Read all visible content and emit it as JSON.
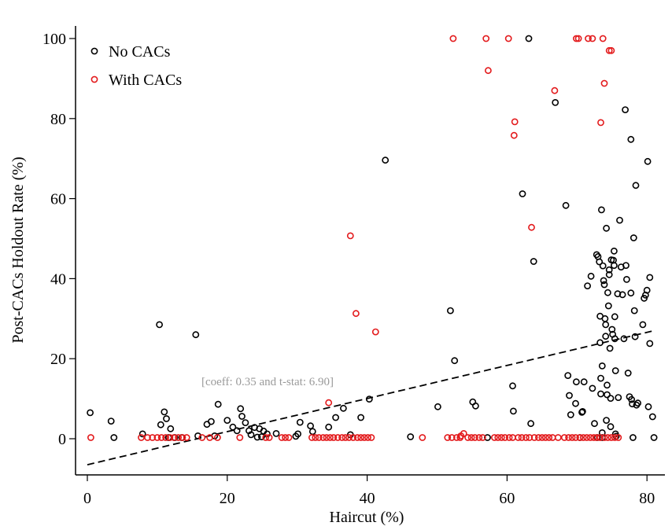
{
  "chart_data": {
    "type": "scatter",
    "xlabel": "Haircut (%)",
    "ylabel": "Post-CACs Holdout Rate (%)",
    "xlim": [
      -2,
      82
    ],
    "ylim": [
      -8,
      103
    ],
    "xticks": [
      0,
      20,
      40,
      60,
      80
    ],
    "yticks": [
      0,
      20,
      40,
      60,
      80,
      100
    ],
    "grid": false,
    "legend_position": "top-left",
    "annotation": "[coeff: 0.35 and t-stat: 6.90]",
    "fit_line": {
      "style": "dashed",
      "color": "#000000",
      "x": [
        0,
        81
      ],
      "y": [
        -6.5,
        27
      ]
    },
    "series": [
      {
        "name": "No CACs",
        "color": "#000000",
        "marker": "hollow-circle",
        "points": [
          [
            0.4,
            6.5
          ],
          [
            3.4,
            4.4
          ],
          [
            3.8,
            0.3
          ],
          [
            7.9,
            1.2
          ],
          [
            10.3,
            28.5
          ],
          [
            10.5,
            3.5
          ],
          [
            11.0,
            6.7
          ],
          [
            11.3,
            5.0
          ],
          [
            11.6,
            0.3
          ],
          [
            11.9,
            2.5
          ],
          [
            12.5,
            0.3
          ],
          [
            13.5,
            0.3
          ],
          [
            15.5,
            26
          ],
          [
            15.8,
            0.7
          ],
          [
            17.1,
            3.6
          ],
          [
            17.7,
            4.3
          ],
          [
            18.2,
            0.7
          ],
          [
            18.7,
            8.6
          ],
          [
            20.0,
            4.6
          ],
          [
            20.8,
            2.9
          ],
          [
            21.4,
            2.0
          ],
          [
            21.9,
            7.5
          ],
          [
            22.1,
            5.6
          ],
          [
            22.6,
            4.0
          ],
          [
            23.1,
            2.0
          ],
          [
            23.4,
            1.0
          ],
          [
            23.9,
            2.8
          ],
          [
            24.3,
            0.4
          ],
          [
            24.6,
            2.5
          ],
          [
            24.9,
            0.5
          ],
          [
            25.2,
            1.9
          ],
          [
            25.7,
            1.2
          ],
          [
            27.0,
            1.3
          ],
          [
            29.8,
            0.6
          ],
          [
            30.1,
            1.2
          ],
          [
            30.4,
            4.1
          ],
          [
            31.9,
            3.2
          ],
          [
            32.2,
            1.8
          ],
          [
            34.5,
            2.9
          ],
          [
            35.5,
            5.3
          ],
          [
            36.6,
            7.6
          ],
          [
            37.6,
            1.0
          ],
          [
            39.1,
            5.3
          ],
          [
            40.3,
            9.9
          ],
          [
            42.6,
            69.6
          ],
          [
            46.2,
            0.5
          ],
          [
            50.1,
            8.0
          ],
          [
            51.9,
            32
          ],
          [
            52.5,
            19.5
          ],
          [
            55.1,
            9.2
          ],
          [
            55.5,
            8.2
          ],
          [
            57.2,
            0.3
          ],
          [
            60.8,
            13.2
          ],
          [
            60.9,
            6.9
          ],
          [
            62.2,
            61.2
          ],
          [
            63.1,
            100
          ],
          [
            63.4,
            3.8
          ],
          [
            63.8,
            44.3
          ],
          [
            66.9,
            84
          ],
          [
            68.4,
            58.3
          ],
          [
            68.7,
            15.8
          ],
          [
            68.9,
            10.8
          ],
          [
            69.1,
            6.0
          ],
          [
            69.8,
            8.8
          ],
          [
            69.9,
            14.2
          ],
          [
            70.4,
            0.3
          ],
          [
            70.7,
            6.6
          ],
          [
            70.8,
            6.8
          ],
          [
            71.0,
            14.2
          ],
          [
            71.5,
            38.2
          ],
          [
            72.0,
            40.6
          ],
          [
            72.2,
            12.6
          ],
          [
            72.5,
            3.8
          ],
          [
            72.8,
            46.0
          ],
          [
            73.0,
            45.5
          ],
          [
            73.2,
            44.2
          ],
          [
            73.3,
            30.6
          ],
          [
            73.3,
            24.0
          ],
          [
            73.4,
            15.1
          ],
          [
            73.4,
            11.2
          ],
          [
            73.5,
            57.2
          ],
          [
            73.6,
            18.2
          ],
          [
            73.6,
            1.5
          ],
          [
            73.7,
            43.2
          ],
          [
            73.8,
            39.5
          ],
          [
            73.9,
            38.5
          ],
          [
            74.0,
            30.0
          ],
          [
            74.1,
            28.5
          ],
          [
            74.1,
            25.6
          ],
          [
            74.2,
            4.6
          ],
          [
            74.2,
            52.6
          ],
          [
            74.3,
            13.4
          ],
          [
            74.3,
            11.0
          ],
          [
            74.4,
            36.5
          ],
          [
            74.5,
            33.2
          ],
          [
            74.6,
            42.2
          ],
          [
            74.6,
            41.0
          ],
          [
            74.7,
            22.6
          ],
          [
            74.8,
            10.1
          ],
          [
            74.8,
            3.0
          ],
          [
            74.9,
            44.7
          ],
          [
            75.0,
            27.3
          ],
          [
            75.1,
            26.1
          ],
          [
            75.2,
            44.6
          ],
          [
            75.3,
            46.9
          ],
          [
            75.3,
            43.3
          ],
          [
            75.4,
            30.5
          ],
          [
            75.4,
            25.0
          ],
          [
            75.5,
            17.0
          ],
          [
            75.5,
            1.2
          ],
          [
            75.6,
            0.6
          ],
          [
            75.8,
            36.2
          ],
          [
            75.9,
            10.3
          ],
          [
            76.1,
            54.6
          ],
          [
            76.3,
            42.9
          ],
          [
            76.5,
            36.0
          ],
          [
            76.7,
            25.0
          ],
          [
            76.9,
            82.2
          ],
          [
            77.0,
            43.3
          ],
          [
            77.1,
            39.8
          ],
          [
            77.3,
            16.4
          ],
          [
            77.5,
            10.5
          ],
          [
            77.7,
            74.8
          ],
          [
            77.7,
            36.4
          ],
          [
            77.8,
            9.8
          ],
          [
            77.9,
            8.7
          ],
          [
            78.0,
            0.3
          ],
          [
            78.1,
            50.2
          ],
          [
            78.2,
            32.0
          ],
          [
            78.3,
            25.5
          ],
          [
            78.4,
            63.3
          ],
          [
            78.5,
            8.4
          ],
          [
            78.7,
            8.9
          ],
          [
            79.4,
            28.5
          ],
          [
            79.6,
            35.1
          ],
          [
            79.8,
            35.9
          ],
          [
            80.0,
            37.1
          ],
          [
            80.1,
            69.3
          ],
          [
            80.2,
            8.0
          ],
          [
            80.4,
            40.3
          ],
          [
            80.4,
            23.8
          ],
          [
            80.8,
            5.5
          ],
          [
            81.0,
            0.3
          ],
          [
            73.6,
            0.3
          ],
          [
            72.9,
            0.3
          ]
        ]
      },
      {
        "name": "With CACs",
        "color": "#e31a1c",
        "marker": "hollow-circle",
        "points": [
          [
            0.5,
            0.3
          ],
          [
            7.7,
            0.3
          ],
          [
            8.6,
            0.3
          ],
          [
            9.3,
            0.3
          ],
          [
            10.0,
            0.3
          ],
          [
            10.6,
            0.3
          ],
          [
            11.2,
            0.3
          ],
          [
            11.8,
            0.3
          ],
          [
            12.4,
            0.3
          ],
          [
            13.0,
            0.3
          ],
          [
            13.6,
            0.3
          ],
          [
            14.2,
            0.3
          ],
          [
            16.4,
            0.3
          ],
          [
            17.5,
            0.3
          ],
          [
            18.6,
            0.3
          ],
          [
            21.8,
            0.3
          ],
          [
            25.5,
            0.3
          ],
          [
            26.0,
            0.3
          ],
          [
            27.8,
            0.3
          ],
          [
            28.3,
            0.3
          ],
          [
            28.8,
            0.3
          ],
          [
            32.1,
            0.3
          ],
          [
            32.6,
            0.3
          ],
          [
            33.1,
            0.3
          ],
          [
            33.7,
            0.3
          ],
          [
            34.2,
            0.3
          ],
          [
            34.7,
            0.3
          ],
          [
            34.5,
            9.0
          ],
          [
            35.2,
            0.3
          ],
          [
            35.8,
            0.3
          ],
          [
            36.4,
            0.3
          ],
          [
            36.9,
            0.3
          ],
          [
            37.4,
            0.3
          ],
          [
            37.6,
            50.7
          ],
          [
            38.0,
            0.3
          ],
          [
            38.4,
            31.3
          ],
          [
            38.6,
            0.3
          ],
          [
            39.1,
            0.3
          ],
          [
            39.6,
            0.3
          ],
          [
            40.1,
            0.3
          ],
          [
            40.6,
            0.3
          ],
          [
            41.2,
            26.7
          ],
          [
            47.9,
            0.3
          ],
          [
            51.5,
            0.3
          ],
          [
            52.1,
            0.3
          ],
          [
            52.3,
            100
          ],
          [
            52.8,
            0.3
          ],
          [
            53.3,
            0.3
          ],
          [
            53.4,
            0.7
          ],
          [
            53.8,
            1.3
          ],
          [
            54.4,
            0.3
          ],
          [
            54.9,
            0.3
          ],
          [
            55.4,
            0.3
          ],
          [
            56.0,
            0.3
          ],
          [
            56.5,
            0.3
          ],
          [
            57.0,
            100
          ],
          [
            57.3,
            92.0
          ],
          [
            58.2,
            0.3
          ],
          [
            58.7,
            0.3
          ],
          [
            59.2,
            0.3
          ],
          [
            59.7,
            0.3
          ],
          [
            60.2,
            100
          ],
          [
            60.3,
            0.3
          ],
          [
            60.8,
            0.3
          ],
          [
            61.0,
            75.8
          ],
          [
            61.1,
            79.2
          ],
          [
            61.6,
            0.3
          ],
          [
            62.1,
            0.3
          ],
          [
            62.7,
            0.3
          ],
          [
            63.2,
            0.3
          ],
          [
            63.5,
            52.8
          ],
          [
            63.9,
            0.3
          ],
          [
            64.5,
            0.3
          ],
          [
            65.0,
            0.3
          ],
          [
            65.5,
            0.3
          ],
          [
            66.0,
            0.3
          ],
          [
            66.5,
            0.3
          ],
          [
            66.8,
            87.0
          ],
          [
            67.3,
            0.3
          ],
          [
            68.2,
            0.3
          ],
          [
            68.8,
            0.3
          ],
          [
            69.3,
            0.3
          ],
          [
            69.8,
            0.3
          ],
          [
            69.9,
            100
          ],
          [
            70.2,
            100
          ],
          [
            70.4,
            0.3
          ],
          [
            70.9,
            0.3
          ],
          [
            71.4,
            0.3
          ],
          [
            71.6,
            100
          ],
          [
            71.9,
            0.3
          ],
          [
            72.2,
            100
          ],
          [
            72.4,
            0.3
          ],
          [
            72.8,
            0.3
          ],
          [
            73.3,
            0.3
          ],
          [
            73.4,
            79.0
          ],
          [
            73.7,
            100
          ],
          [
            73.9,
            88.8
          ],
          [
            73.9,
            0.3
          ],
          [
            74.4,
            0.3
          ],
          [
            74.6,
            97.0
          ],
          [
            74.9,
            97.0
          ],
          [
            74.9,
            0.3
          ],
          [
            75.4,
            0.3
          ],
          [
            75.9,
            0.3
          ]
        ]
      }
    ]
  }
}
